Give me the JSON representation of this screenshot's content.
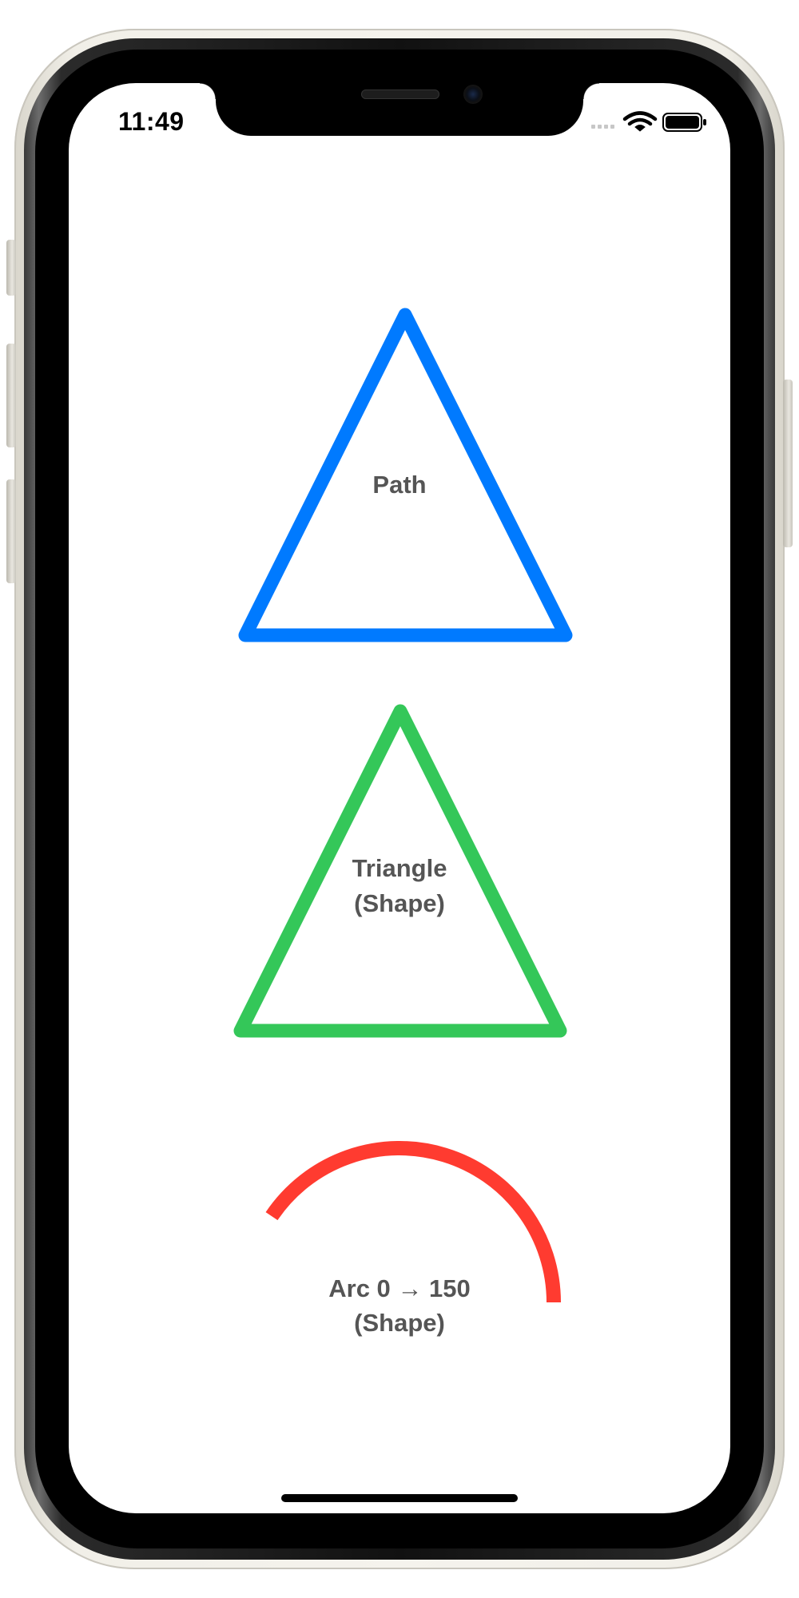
{
  "status_bar": {
    "time": "11:49",
    "signal_icon": "cellular-dots-icon",
    "wifi_icon": "wifi-icon",
    "battery_icon": "battery-full-icon"
  },
  "shapes": {
    "path": {
      "label": "Path",
      "stroke_color": "#007AFF"
    },
    "triangle": {
      "label_line1": "Triangle",
      "label_line2": "(Shape)",
      "stroke_color": "#34C759"
    },
    "arc": {
      "label_line1": "Arc 0 → 150",
      "label_line2": "(Shape)",
      "stroke_color": "#FF3B30"
    }
  },
  "colors": {
    "label_text": "#555555",
    "background": "#FFFFFF"
  }
}
